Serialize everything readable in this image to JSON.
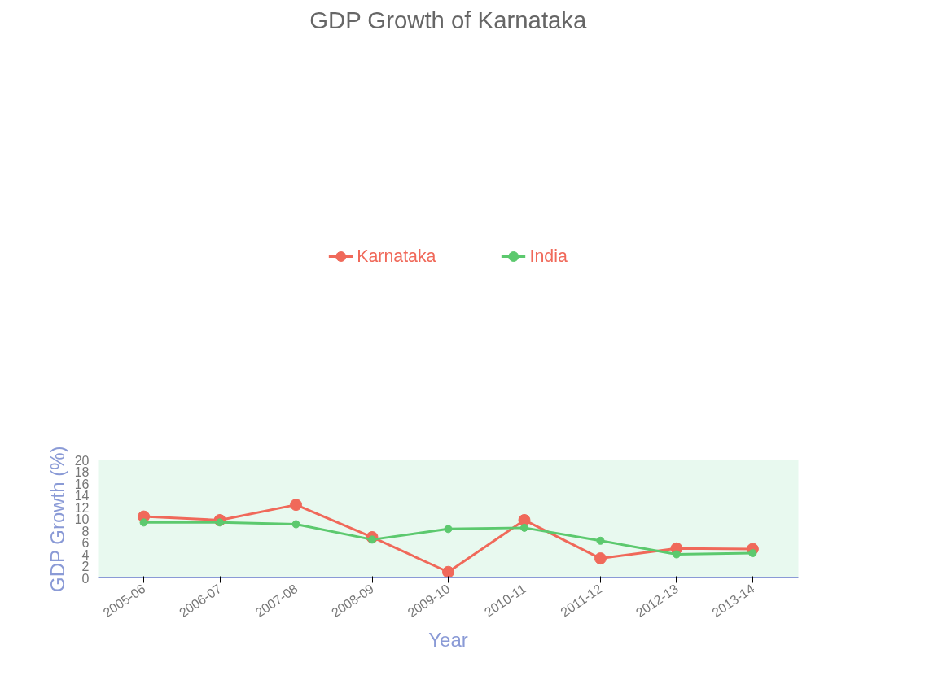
{
  "chart_data": {
    "type": "line",
    "title": "GDP Growth of Karnataka",
    "xlabel": "Year",
    "ylabel": "GDP Growth (%)",
    "categories": [
      "2005-06",
      "2006-07",
      "2007-08",
      "2008-09",
      "2009-10",
      "2010-11",
      "2011-12",
      "2012-13",
      "2013-14"
    ],
    "series": [
      {
        "name": "Karnataka",
        "color": "#f0695a",
        "values": [
          10.4,
          9.8,
          12.4,
          6.9,
          1.0,
          9.8,
          3.3,
          5.0,
          4.9
        ]
      },
      {
        "name": "India",
        "color": "#5cc96e",
        "values": [
          9.4,
          9.4,
          9.1,
          6.5,
          8.3,
          8.5,
          6.3,
          4.0,
          4.2
        ]
      }
    ],
    "ylim": [
      0,
      20
    ],
    "yticks": [
      0,
      2,
      4,
      6,
      8,
      10,
      12,
      14,
      16,
      18,
      20
    ],
    "grid": false,
    "legend": "top",
    "marker": "circle",
    "line_style": "solid"
  }
}
